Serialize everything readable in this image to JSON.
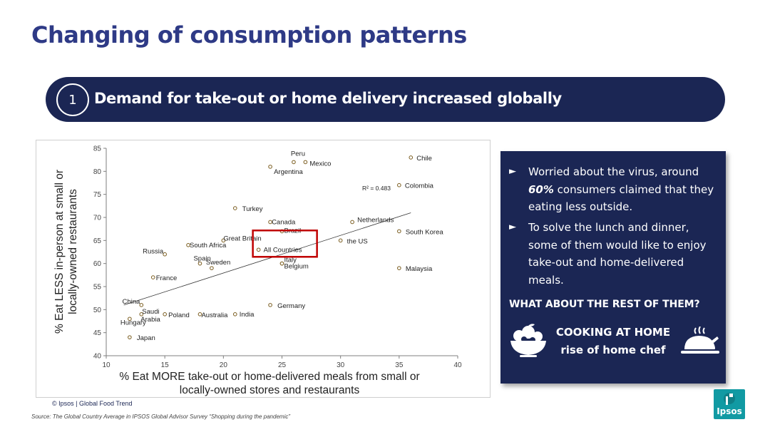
{
  "slide": {
    "title": "Changing of consumption patterns",
    "banner_number": "1",
    "banner_text": "Demand for take-out or home delivery increased globally"
  },
  "chart_data": {
    "type": "scatter",
    "xlabel": [
      "% Eat MORE take-out or home-delivered meals from small or",
      "locally-owned stores and restaurants"
    ],
    "ylabel": [
      "% Eat LESS in-person at small or",
      "locally-owned restaurants"
    ],
    "xlim": [
      10,
      40
    ],
    "ylim": [
      40,
      85
    ],
    "x_ticks": [
      10,
      15,
      20,
      25,
      30,
      35,
      40
    ],
    "y_ticks": [
      40,
      45,
      50,
      55,
      60,
      65,
      70,
      75,
      80,
      85
    ],
    "grid": false,
    "trendline": {
      "label": "R² = 0.483",
      "from": [
        11.5,
        51
      ],
      "to": [
        36,
        71
      ]
    },
    "highlight": "All Countries",
    "points": [
      {
        "label": "Peru",
        "x": 26,
        "y": 82
      },
      {
        "label": "Mexico",
        "x": 27,
        "y": 82
      },
      {
        "label": "Chile",
        "x": 36,
        "y": 83
      },
      {
        "label": "Argentina",
        "x": 24,
        "y": 81
      },
      {
        "label": "Colombia",
        "x": 35,
        "y": 77
      },
      {
        "label": "Turkey",
        "x": 21,
        "y": 72
      },
      {
        "label": "Canada",
        "x": 24,
        "y": 69
      },
      {
        "label": "Brazil",
        "x": 25,
        "y": 67
      },
      {
        "label": "Netherlands",
        "x": 31,
        "y": 69
      },
      {
        "label": "South Korea",
        "x": 35,
        "y": 67
      },
      {
        "label": "Great Britain",
        "x": 20,
        "y": 65
      },
      {
        "label": "the US",
        "x": 30,
        "y": 65
      },
      {
        "label": "South Africa",
        "x": 17,
        "y": 64
      },
      {
        "label": "All Countries",
        "x": 23,
        "y": 63
      },
      {
        "label": "Russia",
        "x": 15,
        "y": 62
      },
      {
        "label": "Spain",
        "x": 18,
        "y": 60
      },
      {
        "label": "Sweden",
        "x": 19,
        "y": 59
      },
      {
        "label": "Italy",
        "x": 25,
        "y": 60
      },
      {
        "label": "Belgium",
        "x": 25,
        "y": 60
      },
      {
        "label": "Malaysia",
        "x": 35,
        "y": 59
      },
      {
        "label": "France",
        "x": 14,
        "y": 57
      },
      {
        "label": "China",
        "x": 13,
        "y": 51
      },
      {
        "label": "Germany",
        "x": 24,
        "y": 51
      },
      {
        "label": "Saudi Arabia",
        "x": 13,
        "y": 49
      },
      {
        "label": "Poland",
        "x": 15,
        "y": 49
      },
      {
        "label": "Australia",
        "x": 18,
        "y": 49
      },
      {
        "label": "India",
        "x": 21,
        "y": 49
      },
      {
        "label": "Hungary",
        "x": 12,
        "y": 48
      },
      {
        "label": "Japan",
        "x": 12,
        "y": 44
      }
    ]
  },
  "footer": {
    "copyright": "© Ipsos | Global Food Trend",
    "source": "Source: The Global Country Average in IPSOS Global Advisor Survey “Shopping during the pandemic”"
  },
  "panel": {
    "bullet_arrow": "►",
    "bullet1_pre": "Worried about the virus, around ",
    "bullet1_bold": "60%",
    "bullet1_post": " consumers claimed that they eating less outside.",
    "bullet2": "To solve the lunch and dinner, some of them would like to enjoy take-out and home-delivered meals.",
    "question": "WHAT ABOUT THE REST OF THEM?",
    "cooking_line1": "COOKING AT HOME",
    "cooking_line2": "rise of home chef",
    "bowl_icon": "fruit-bowl-icon",
    "chicken_icon": "roast-chicken-icon"
  },
  "logo": {
    "text": "Ipsos",
    "color": "#119aa3"
  },
  "colors": {
    "navy": "#1b2654",
    "title": "#2e3a86",
    "highlight_box": "#c00000",
    "marker": "#7a5c1e"
  }
}
